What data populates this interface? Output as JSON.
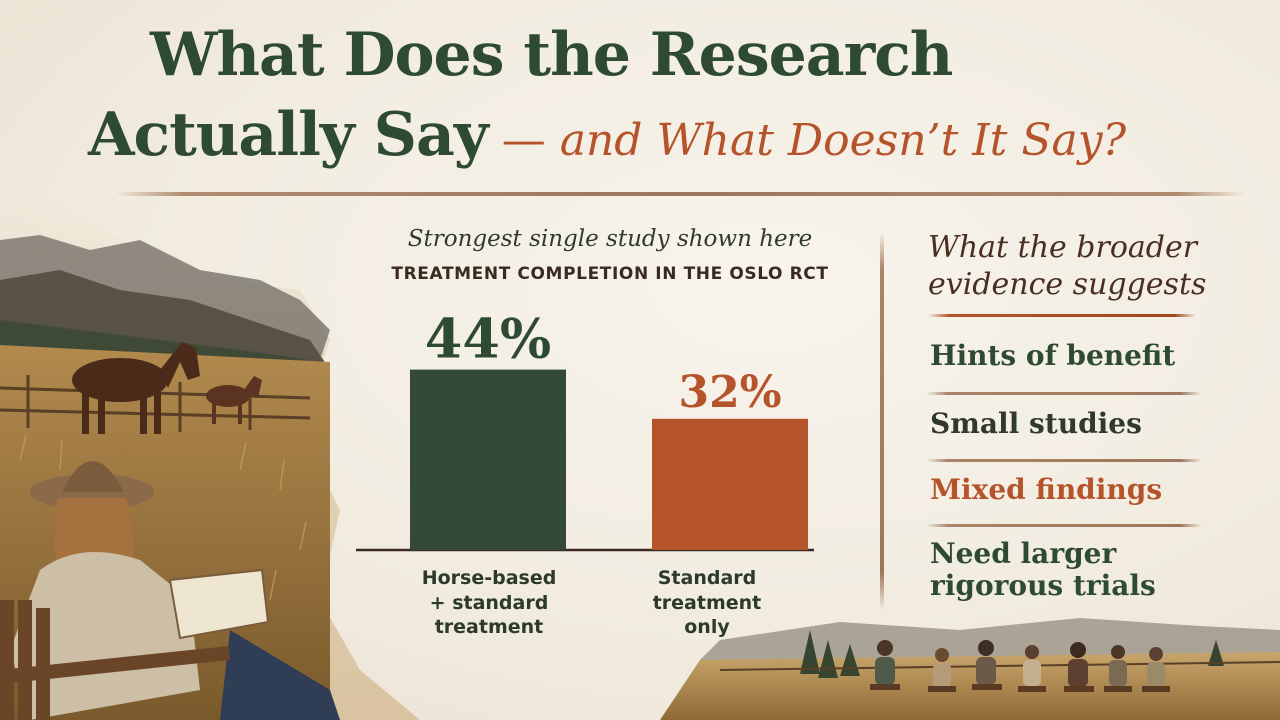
{
  "title": {
    "line1": "What Does the Research",
    "line2_main": "Actually Say",
    "line2_accent": "— and What Doesn’t It Say?"
  },
  "colors": {
    "title_green": "#2f4a32",
    "accent_red": "#b5532b",
    "bar_green": "#34493a",
    "bar_red": "#b5532b"
  },
  "chart_data": {
    "type": "bar",
    "subtitle": "Strongest single study shown here",
    "title": "TREATMENT COMPLETION IN THE OSLO RCT",
    "categories": [
      "Horse-based + standard treatment",
      "Standard treatment only"
    ],
    "category_lines": [
      [
        "Horse-based",
        "+ standard",
        "treatment"
      ],
      [
        "Standard",
        "treatment",
        "only"
      ]
    ],
    "values": [
      44,
      32
    ],
    "value_labels": [
      "44%",
      "32%"
    ],
    "bar_colors": [
      "#34493a",
      "#b5532b"
    ],
    "label_colors": [
      "#2f4a32",
      "#b5532b"
    ],
    "ylim": [
      0,
      50
    ],
    "grid": false
  },
  "evidence": {
    "heading_line1": "What the broader",
    "heading_line2": "evidence suggests",
    "items": [
      {
        "lines": [
          "Hints of benefit"
        ],
        "color": "#2f4a32"
      },
      {
        "lines": [
          "Small studies"
        ],
        "color": "#2f3a2c"
      },
      {
        "lines": [
          "Mixed findings"
        ],
        "color": "#b5532b"
      },
      {
        "lines": [
          "Need larger",
          "rigorous trials"
        ],
        "color": "#2f4a32"
      }
    ]
  },
  "illustration": {
    "left_scene": "ranch-landscape-with-horses-and-reader",
    "bottom_scene": "group-circle-in-field"
  }
}
